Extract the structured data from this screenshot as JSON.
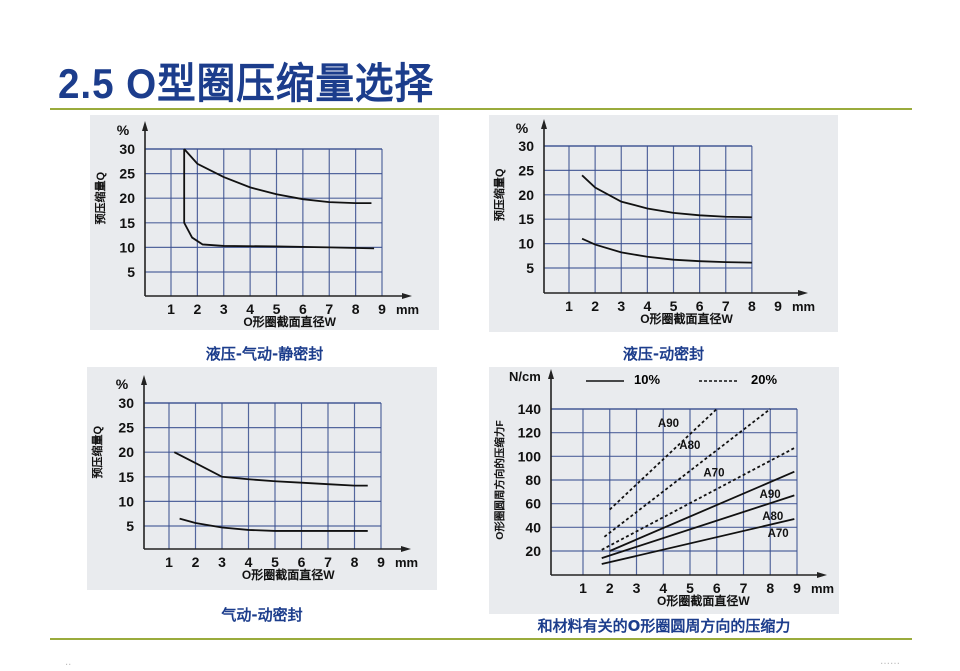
{
  "slide": {
    "title": "2.5 O型圈压缩量选择",
    "footer_left_mark": "··",
    "footer_right_mark": "……"
  },
  "captions": {
    "c1": "液压-气动-静密封",
    "c2": "液压-动密封",
    "c3": "气动-动密封",
    "c4": "和材料有关的O形圈圆周方向的压缩力"
  },
  "axis_text": {
    "pct": "%",
    "mm": "mm",
    "ylabel_q": "预压缩量Q",
    "xlabel_w": "O形圈截面直径W",
    "ncm": "N/cm",
    "ylabel_f": "O形圈圆周方向的压缩力F",
    "legend_solid": "10%",
    "legend_dashed": "20%"
  },
  "colors": {
    "title": "#1c3d8c",
    "rule": "#9aab3c",
    "panel": "#e9ebee",
    "grid": "#3a4f8f",
    "curve": "#111111"
  },
  "chart_data": [
    {
      "type": "line",
      "title": "液压-气动-静密封",
      "xlabel": "O形圈截面直径W (mm)",
      "ylabel": "预压缩量Q (%)",
      "xlim": [
        0,
        9
      ],
      "ylim": [
        0,
        30
      ],
      "x_ticks": [
        1,
        2,
        3,
        4,
        5,
        6,
        7,
        8,
        9
      ],
      "y_ticks": [
        5,
        10,
        15,
        20,
        25,
        30
      ],
      "grid": true,
      "series": [
        {
          "name": "upper",
          "x": [
            1.5,
            2,
            3,
            4,
            5,
            6,
            7,
            8,
            8.6
          ],
          "values": [
            30,
            27,
            24.3,
            22.2,
            20.8,
            19.8,
            19.2,
            19,
            19
          ]
        },
        {
          "name": "lower",
          "x": [
            1.5,
            1.5,
            1.8,
            2.2,
            3,
            5,
            7,
            8.7
          ],
          "values": [
            30,
            15,
            12,
            10.6,
            10.3,
            10.2,
            10,
            9.8
          ]
        }
      ]
    },
    {
      "type": "line",
      "title": "液压-动密封",
      "xlabel": "O形圈截面直径W (mm)",
      "ylabel": "预压缩量Q (%)",
      "xlim": [
        0,
        9
      ],
      "ylim": [
        0,
        30
      ],
      "x_ticks": [
        1,
        2,
        3,
        4,
        5,
        6,
        7,
        8,
        9
      ],
      "y_ticks": [
        5,
        10,
        15,
        20,
        25,
        30
      ],
      "grid": true,
      "series": [
        {
          "name": "upper",
          "x": [
            1.5,
            2,
            3,
            4,
            5,
            6,
            7,
            8
          ],
          "values": [
            24,
            21.5,
            18.6,
            17.2,
            16.3,
            15.8,
            15.5,
            15.4
          ]
        },
        {
          "name": "lower",
          "x": [
            1.5,
            2,
            3,
            4,
            5,
            6,
            7,
            8
          ],
          "values": [
            11,
            9.8,
            8.2,
            7.3,
            6.7,
            6.4,
            6.2,
            6.1
          ]
        }
      ]
    },
    {
      "type": "line",
      "title": "气动-动密封",
      "xlabel": "O形圈截面直径W (mm)",
      "ylabel": "预压缩量Q (%)",
      "xlim": [
        0,
        9
      ],
      "ylim": [
        0,
        30
      ],
      "x_ticks": [
        1,
        2,
        3,
        4,
        5,
        6,
        7,
        8,
        9
      ],
      "y_ticks": [
        5,
        10,
        15,
        20,
        25,
        30
      ],
      "grid": true,
      "series": [
        {
          "name": "upper",
          "x": [
            1.2,
            2,
            3,
            4,
            5,
            6,
            7,
            8,
            8.5
          ],
          "values": [
            20,
            17.8,
            15,
            14.5,
            14.1,
            13.8,
            13.5,
            13.2,
            13.2
          ]
        },
        {
          "name": "lower",
          "x": [
            1.4,
            2,
            3,
            4,
            5,
            6,
            7,
            8,
            8.5
          ],
          "values": [
            6.5,
            5.6,
            4.7,
            4.2,
            4,
            4,
            4,
            4,
            4
          ]
        }
      ]
    },
    {
      "type": "line",
      "title": "和材料有关的O形圈圆周方向的压缩力",
      "xlabel": "O形圈截面直径W (mm)",
      "ylabel": "O形圈圆周方向的压缩力F (N/cm)",
      "xlim": [
        0,
        9
      ],
      "ylim": [
        0,
        140
      ],
      "x_ticks": [
        1,
        2,
        3,
        4,
        5,
        6,
        7,
        8,
        9
      ],
      "y_ticks": [
        20,
        40,
        60,
        80,
        100,
        120,
        140
      ],
      "grid": true,
      "legend": [
        {
          "style": "solid",
          "label": "10%"
        },
        {
          "style": "dashed",
          "label": "20%"
        }
      ],
      "series": [
        {
          "name": "A90 20%",
          "style": "dashed",
          "x": [
            2,
            6
          ],
          "values": [
            55,
            140
          ]
        },
        {
          "name": "A80 20%",
          "style": "dashed",
          "x": [
            1.8,
            8
          ],
          "values": [
            32,
            140
          ]
        },
        {
          "name": "A70 20%",
          "style": "dashed",
          "x": [
            1.7,
            8.9
          ],
          "values": [
            21,
            107
          ]
        },
        {
          "name": "A90 10%",
          "style": "solid",
          "x": [
            2,
            8.9
          ],
          "values": [
            20,
            87
          ]
        },
        {
          "name": "A80 10%",
          "style": "solid",
          "x": [
            1.7,
            8.9
          ],
          "values": [
            14,
            67
          ]
        },
        {
          "name": "A70 10%",
          "style": "solid",
          "x": [
            1.7,
            8.9
          ],
          "values": [
            9,
            47
          ]
        }
      ],
      "annotations": [
        {
          "text": "A90",
          "x": 3.8,
          "y": 125
        },
        {
          "text": "A80",
          "x": 4.6,
          "y": 106
        },
        {
          "text": "A70",
          "x": 5.5,
          "y": 83
        },
        {
          "text": "A90",
          "x": 7.6,
          "y": 65
        },
        {
          "text": "A80",
          "x": 7.7,
          "y": 46
        },
        {
          "text": "A70",
          "x": 7.9,
          "y": 32
        }
      ]
    }
  ]
}
